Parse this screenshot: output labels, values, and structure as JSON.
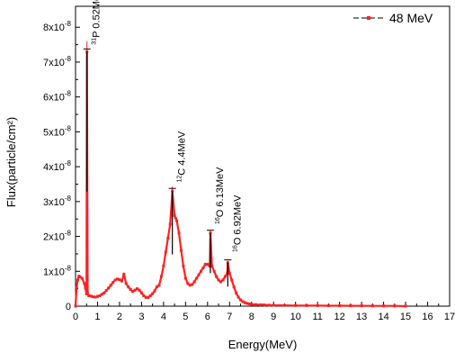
{
  "chart_data": {
    "type": "line",
    "xlabel": "Energy(MeV)",
    "ylabel": "Flux(particle/cm²)",
    "xlim": [
      0,
      17
    ],
    "ylim": [
      0,
      8.6e-08
    ],
    "x_ticks": [
      0,
      1,
      2,
      3,
      4,
      5,
      6,
      7,
      8,
      9,
      10,
      11,
      12,
      13,
      14,
      15,
      16,
      17
    ],
    "y_ticks": [
      {
        "value": 0,
        "mantissa": "0",
        "exponent": ""
      },
      {
        "value": 1e-08,
        "mantissa": "1x10",
        "exponent": "-8"
      },
      {
        "value": 2e-08,
        "mantissa": "2x10",
        "exponent": "-8"
      },
      {
        "value": 3e-08,
        "mantissa": "3x10",
        "exponent": "-8"
      },
      {
        "value": 4e-08,
        "mantissa": "4x10",
        "exponent": "-8"
      },
      {
        "value": 5e-08,
        "mantissa": "5x10",
        "exponent": "-8"
      },
      {
        "value": 6e-08,
        "mantissa": "6x10",
        "exponent": "-8"
      },
      {
        "value": 7e-08,
        "mantissa": "7x10",
        "exponent": "-8"
      },
      {
        "value": 8e-08,
        "mantissa": "8x10",
        "exponent": "-8"
      }
    ],
    "grid": false,
    "legend_position": "top-right",
    "series": [
      {
        "name": "48 MeV",
        "color": "#ff2020",
        "line_color": "#000000",
        "x": [
          0.0,
          0.05,
          0.1,
          0.15,
          0.2,
          0.3,
          0.4,
          0.45,
          0.5,
          0.52,
          0.55,
          0.6,
          0.7,
          0.8,
          0.9,
          1.0,
          1.1,
          1.2,
          1.3,
          1.4,
          1.5,
          1.6,
          1.7,
          1.8,
          1.9,
          2.0,
          2.1,
          2.2,
          2.3,
          2.4,
          2.5,
          2.6,
          2.7,
          2.8,
          2.9,
          3.0,
          3.1,
          3.2,
          3.3,
          3.4,
          3.5,
          3.6,
          3.7,
          3.8,
          3.9,
          4.0,
          4.1,
          4.2,
          4.3,
          4.4,
          4.5,
          4.6,
          4.7,
          4.8,
          4.9,
          5.0,
          5.1,
          5.2,
          5.3,
          5.4,
          5.5,
          5.6,
          5.7,
          5.8,
          5.9,
          6.0,
          6.1,
          6.13,
          6.2,
          6.3,
          6.4,
          6.5,
          6.6,
          6.7,
          6.8,
          6.9,
          6.92,
          7.0,
          7.1,
          7.2,
          7.3,
          7.4,
          7.5,
          7.6,
          7.7,
          7.8,
          7.9,
          8.0,
          8.2,
          8.4,
          8.6,
          8.8,
          9.0,
          9.5,
          10.0,
          10.5,
          11.0,
          11.5,
          12.0,
          12.5,
          13.0,
          13.5,
          14.0,
          14.5,
          15.0
        ],
        "y": [
          0.0,
          5.5e-09,
          7.5e-09,
          8.6e-09,
          8.4e-09,
          8e-09,
          6.5e-09,
          5.2e-09,
          3.5e-09,
          7.3e-08,
          3.6e-09,
          3e-09,
          2.9e-09,
          2.7e-09,
          2.6e-09,
          2.8e-09,
          3e-09,
          3.4e-09,
          3.8e-09,
          4.5e-09,
          5.2e-09,
          6e-09,
          6.8e-09,
          7.5e-09,
          7.8e-09,
          7.6e-09,
          7.2e-09,
          9.2e-09,
          6.5e-09,
          5.5e-09,
          4.8e-09,
          4.2e-09,
          4.6e-09,
          5e-09,
          4.6e-09,
          3.8e-09,
          3e-09,
          2.5e-09,
          2.5e-09,
          3e-09,
          3.6e-09,
          4.4e-09,
          5.6e-09,
          6e-09,
          8.5e-09,
          1.15e-08,
          1.55e-08,
          1.95e-08,
          2.35e-08,
          3.3e-08,
          2.6e-08,
          2.45e-08,
          2.1e-08,
          1.6e-08,
          1.15e-08,
          8e-09,
          6.5e-09,
          6e-09,
          6.2e-09,
          7e-09,
          8e-09,
          9e-09,
          1e-08,
          1.1e-08,
          1.2e-08,
          1.2e-08,
          1.15e-08,
          2.1e-08,
          1.15e-08,
          1e-08,
          8.5e-09,
          7.5e-09,
          7e-09,
          7.5e-09,
          8.5e-09,
          9.5e-09,
          1.25e-08,
          9.5e-09,
          7.5e-09,
          5.5e-09,
          3.8e-09,
          2.6e-09,
          1.8e-09,
          1.3e-09,
          1e-09,
          8e-10,
          6.5e-10,
          5.5e-10,
          4.5e-10,
          3.8e-10,
          3.3e-10,
          2.9e-10,
          2.6e-10,
          2.2e-10,
          1.9e-10,
          1.7e-10,
          1.5e-10,
          1.3e-10,
          1.2e-10,
          1.1e-10,
          1e-10,
          9e-11,
          8e-11,
          7e-11,
          0.0
        ]
      }
    ],
    "annotations": [
      {
        "iso": "31",
        "text": "P 0.52MeV",
        "x": 0.52,
        "y": 7.3e-08,
        "label_y": 7.5e-08
      },
      {
        "iso": "12",
        "text": "C 4.4MeV",
        "x": 4.4,
        "y": 3.3e-08,
        "label_y": 3.55e-08
      },
      {
        "iso": "16",
        "text": "O 6.13MeV",
        "x": 6.13,
        "y": 2.1e-08,
        "label_y": 2.35e-08
      },
      {
        "iso": "16",
        "text": "O 6.92MeV",
        "x": 6.92,
        "y": 1.25e-08,
        "label_y": 1.55e-08
      }
    ]
  }
}
